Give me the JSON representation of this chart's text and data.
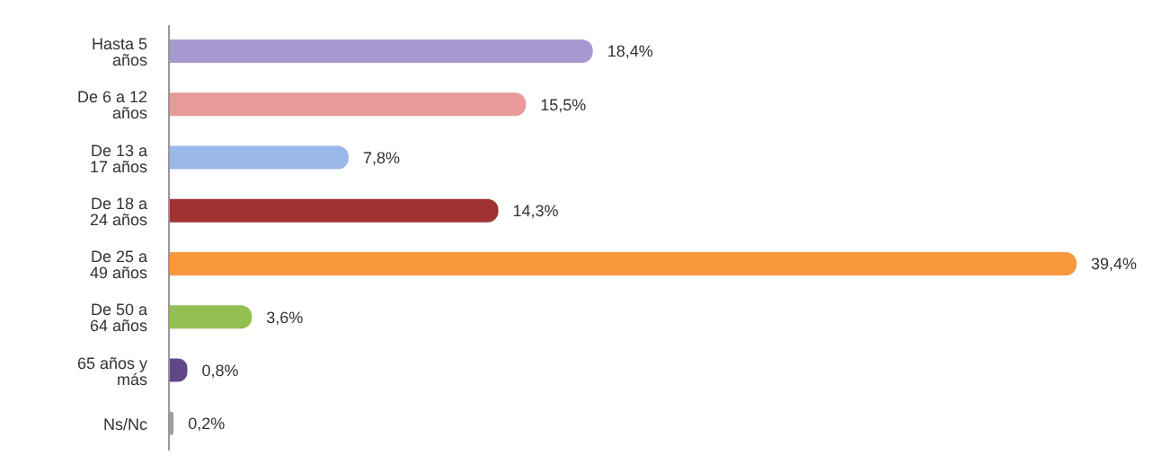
{
  "chart_data": {
    "type": "bar",
    "orientation": "horizontal",
    "categories": [
      "Hasta 5 años",
      "De 6 a 12 años",
      "De 13 a 17 años",
      "De 18 a 24 años",
      "De 25 a 49 años",
      "De 50 a 64 años",
      "65 años y más",
      "Ns/Nc"
    ],
    "values": [
      18.4,
      15.5,
      7.8,
      14.3,
      39.4,
      3.6,
      0.8,
      0.2
    ],
    "colors": [
      "#a898d0",
      "#e89a98",
      "#9ab8e8",
      "#a03232",
      "#f8983c",
      "#92c050",
      "#604888",
      "#a0a0a0"
    ],
    "value_labels": [
      "18,4%",
      "15,5%",
      "7,8%",
      "14,3%",
      "39,4%",
      "3,6%",
      "0,8%",
      "0,2%"
    ],
    "grid": false
  }
}
